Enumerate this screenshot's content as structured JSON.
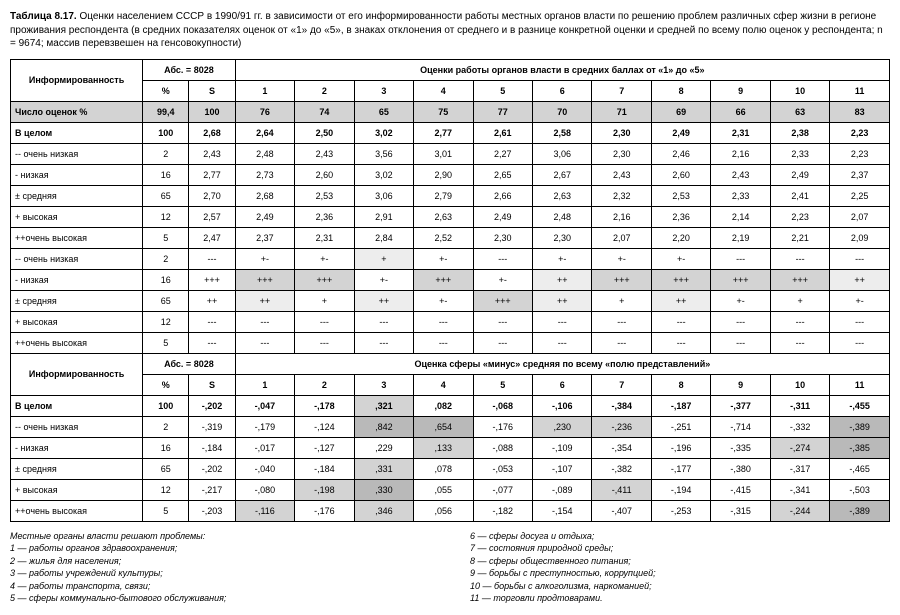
{
  "title_prefix": "Таблица 8.17.",
  "title_rest": " Оценки населением СССР в 1990/91 гг. в зависимости от его информированности работы местных органов власти по решению проблем различных сфер жизни в регионе проживания респондента (в средних показателях оценок от «1» до «5», в знаках отклонения от среднего и в разнице конкретной оценки и средней по всему полю оценок у респондента; n = 9674; массив перевзвешен на генсовокупности)",
  "header": {
    "inf": "Информированность",
    "abs": "Абс. = 8028",
    "pct": "%",
    "s": "S",
    "evalA": "Оценки работы органов власти в средних баллах от «1» до «5»",
    "evalB": "Оценка сферы «минус» средняя по всему «полю представлений»",
    "cols": [
      "1",
      "2",
      "3",
      "4",
      "5",
      "6",
      "7",
      "8",
      "9",
      "10",
      "11"
    ]
  },
  "row_labels": {
    "count": "Число оценок  %",
    "total": "В целом",
    "vlow": "-- очень низкая",
    "low": "- низкая",
    "mid": "± средняя",
    "high": "+ высокая",
    "vhigh": "++очень высокая"
  },
  "shade_colors": {
    "none": "#ffffff",
    "lt": "#ededed",
    "md": "#d3d3d3",
    "dk": "#b9b9b9",
    "hdr": "#e9e9e9"
  },
  "partA": {
    "count": {
      "pct": "99,4",
      "s": "100",
      "v": [
        "76",
        "74",
        "65",
        "75",
        "77",
        "70",
        "71",
        "69",
        "66",
        "63",
        "83"
      ],
      "sh": [
        "md",
        "md",
        "md",
        "md",
        "md",
        "md",
        "md",
        "md",
        "md",
        "md",
        "md"
      ]
    },
    "total": {
      "pct": "100",
      "s": "2,68",
      "v": [
        "2,64",
        "2,50",
        "3,02",
        "2,77",
        "2,61",
        "2,58",
        "2,30",
        "2,49",
        "2,31",
        "2,38",
        "2,23"
      ]
    },
    "vlow": {
      "pct": "2",
      "s": "2,43",
      "v": [
        "2,48",
        "2,43",
        "3,56",
        "3,01",
        "2,27",
        "3,06",
        "2,30",
        "2,46",
        "2,16",
        "2,33",
        "2,23"
      ]
    },
    "low": {
      "pct": "16",
      "s": "2,77",
      "v": [
        "2,73",
        "2,60",
        "3,02",
        "2,90",
        "2,65",
        "2,67",
        "2,43",
        "2,60",
        "2,43",
        "2,49",
        "2,37"
      ]
    },
    "mid": {
      "pct": "65",
      "s": "2,70",
      "v": [
        "2,68",
        "2,53",
        "3,06",
        "2,79",
        "2,66",
        "2,63",
        "2,32",
        "2,53",
        "2,33",
        "2,41",
        "2,25"
      ]
    },
    "high": {
      "pct": "12",
      "s": "2,57",
      "v": [
        "2,49",
        "2,36",
        "2,91",
        "2,63",
        "2,49",
        "2,48",
        "2,16",
        "2,36",
        "2,14",
        "2,23",
        "2,07"
      ]
    },
    "vhigh": {
      "pct": "5",
      "s": "2,47",
      "v": [
        "2,37",
        "2,31",
        "2,84",
        "2,52",
        "2,30",
        "2,30",
        "2,07",
        "2,20",
        "2,19",
        "2,21",
        "2,09"
      ]
    },
    "s_vlow": {
      "pct": "2",
      "s": "---",
      "v": [
        "+-",
        "+-",
        "+",
        "+-",
        "---",
        "+-",
        "+-",
        "+-",
        "---",
        "---",
        "---"
      ],
      "sh": [
        "none",
        "none",
        "lt",
        "none",
        "none",
        "none",
        "none",
        "none",
        "none",
        "none",
        "none"
      ]
    },
    "s_low": {
      "pct": "16",
      "s": "+++",
      "v": [
        "+++",
        "+++",
        "+-",
        "+++",
        "+-",
        "++",
        "+++",
        "+++",
        "+++",
        "+++",
        "++"
      ],
      "sh": [
        "md",
        "md",
        "none",
        "md",
        "none",
        "lt",
        "md",
        "md",
        "md",
        "md",
        "lt"
      ]
    },
    "s_mid": {
      "pct": "65",
      "s": "++",
      "v": [
        "++",
        "+",
        "++",
        "+-",
        "+++",
        "++",
        "+",
        "++",
        "+-",
        "+",
        "+-"
      ],
      "sh": [
        "lt",
        "none",
        "lt",
        "none",
        "md",
        "lt",
        "none",
        "lt",
        "none",
        "none",
        "none"
      ]
    },
    "s_high": {
      "pct": "12",
      "s": "---",
      "v": [
        "---",
        "---",
        "---",
        "---",
        "---",
        "---",
        "---",
        "---",
        "---",
        "---",
        "---"
      ]
    },
    "s_vhigh": {
      "pct": "5",
      "s": "---",
      "v": [
        "---",
        "---",
        "---",
        "---",
        "---",
        "---",
        "---",
        "---",
        "---",
        "---",
        "---"
      ]
    }
  },
  "partB": {
    "total": {
      "pct": "100",
      "s": "-,202",
      "v": [
        "-,047",
        "-,178",
        ",321",
        ",082",
        "-,068",
        "-,106",
        "-,384",
        "-,187",
        "-,377",
        "-,311",
        "-,455"
      ],
      "sh": [
        "none",
        "none",
        "md",
        "none",
        "none",
        "none",
        "none",
        "none",
        "none",
        "none",
        "none"
      ]
    },
    "vlow": {
      "pct": "2",
      "s": "-,319",
      "v": [
        "-,179",
        "-,124",
        ",842",
        ",654",
        "-,176",
        ",230",
        "-,236",
        "-,251",
        "-,714",
        "-,332",
        "-,389"
      ],
      "sh": [
        "none",
        "none",
        "dk",
        "dk",
        "none",
        "md",
        "md",
        "none",
        "none",
        "none",
        "dk"
      ]
    },
    "low": {
      "pct": "16",
      "s": "-,184",
      "v": [
        "-,017",
        "-,127",
        ",229",
        ",133",
        "-,088",
        "-,109",
        "-,354",
        "-,196",
        "-,335",
        "-,274",
        "-,385"
      ],
      "sh": [
        "none",
        "none",
        "none",
        "md",
        "none",
        "none",
        "none",
        "none",
        "none",
        "md",
        "dk"
      ]
    },
    "mid": {
      "pct": "65",
      "s": "-,202",
      "v": [
        "-,040",
        "-,184",
        ",331",
        ",078",
        "-,053",
        "-,107",
        "-,382",
        "-,177",
        "-,380",
        "-,317",
        "-,465"
      ],
      "sh": [
        "none",
        "none",
        "md",
        "none",
        "none",
        "none",
        "none",
        "none",
        "none",
        "none",
        "none"
      ]
    },
    "high": {
      "pct": "12",
      "s": "-,217",
      "v": [
        "-,080",
        "-,198",
        ",330",
        ",055",
        "-,077",
        "-,089",
        "-,411",
        "-,194",
        "-,415",
        "-,341",
        "-,503"
      ],
      "sh": [
        "none",
        "md",
        "dk",
        "none",
        "none",
        "none",
        "md",
        "none",
        "none",
        "none",
        "none"
      ]
    },
    "vhigh": {
      "pct": "5",
      "s": "-,203",
      "v": [
        "-,116",
        "-,176",
        ",346",
        ",056",
        "-,182",
        "-,154",
        "-,407",
        "-,253",
        "-,315",
        "-,244",
        "-,389"
      ],
      "sh": [
        "md",
        "none",
        "md",
        "none",
        "none",
        "none",
        "none",
        "none",
        "none",
        "md",
        "dk"
      ]
    }
  },
  "footnotes": {
    "header": "Местные органы власти решают проблемы:",
    "left": [
      "1 — работы органов здравоохранения;",
      "2 — жилья для населения;",
      "3 — работы учреждений культуры;",
      "4 — работы транспорта, связи;",
      "5 — сферы коммунально-бытового обслуживания;"
    ],
    "right": [
      "6 — сферы досуга и отдыха;",
      "7 — состояния природной среды;",
      "8 — сферы общественного питания;",
      "9 — борьбы с преступностью, коррупцией;",
      "10 — борьбы с алкоголизма, наркоманией;",
      "11 — торговли продтоварами."
    ]
  }
}
